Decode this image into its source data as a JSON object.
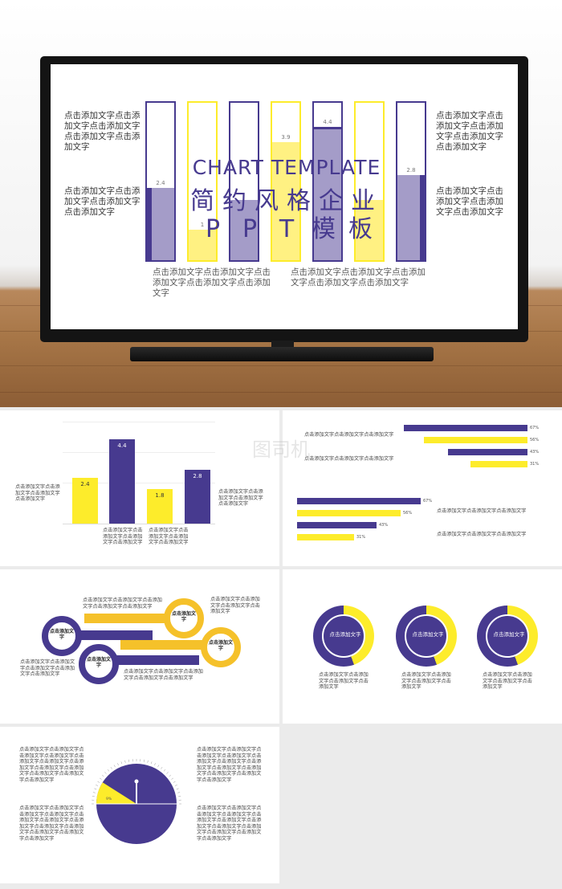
{
  "hero": {
    "title_en": "CHART TEMPLATE",
    "title_cn_1": "简约风格企业",
    "title_cn_2": [
      "P",
      "P",
      "T",
      "模",
      "板"
    ],
    "left_top": "点击添加文字点击添加文字点击添加文字点击添加文字点击添加文字",
    "left_bottom": "点击添加文字点击添加文字点击添加文字点击添加文字",
    "right_top": "点击添加文字点击添加文字点击添加文字点击添加文字点击添加文字",
    "right_bottom": "点击添加文字点击添加文字点击添加文字点击添加文字",
    "bottom_left": "点击添加文字点击添加文字点击添加文字点击添加文字点击添加文字",
    "bottom_right": "点击添加文字点击添加文字点击添加文字点击添加文字点击添加文字",
    "colors": {
      "purple": "#473a8f",
      "yellow": "#fdec2b",
      "monitor": "#141414",
      "wood": "#a77647"
    }
  },
  "chart_data": [
    {
      "type": "bar",
      "values": [
        2.4,
        1,
        2.0,
        3.9,
        4.4,
        2.0,
        2.8
      ],
      "value_labels": [
        "2.4",
        "1",
        "",
        "3.9",
        "4.4",
        "",
        "2.8"
      ],
      "colors": [
        "purple",
        "yellow",
        "purple",
        "yellow",
        "purple",
        "yellow",
        "purple"
      ],
      "ylim": [
        0,
        5.2
      ]
    },
    {
      "type": "bar",
      "values": [
        2.4,
        4.4,
        1.8,
        2.8
      ],
      "value_labels": [
        "2.4",
        "4.4",
        "1.8",
        "2.8"
      ],
      "colors": [
        "yellow",
        "purple",
        "yellow",
        "purple"
      ],
      "ylim": [
        0,
        4.8
      ]
    },
    {
      "type": "bar",
      "orientation": "horizontal",
      "values": [
        67,
        56,
        43,
        31
      ],
      "value_labels": [
        "67%",
        "56%",
        "43%",
        "31%"
      ],
      "colors": [
        "purple",
        "yellow",
        "purple",
        "yellow"
      ],
      "xlim": [
        0,
        100
      ]
    },
    {
      "type": "bar",
      "orientation": "horizontal",
      "values": [
        67,
        56,
        43,
        31
      ],
      "value_labels": [
        "67%",
        "56%",
        "43%",
        "31%"
      ],
      "colors": [
        "purple",
        "yellow",
        "purple",
        "yellow"
      ],
      "xlim": [
        0,
        100
      ]
    },
    {
      "type": "pie",
      "slices": [
        {
          "label": "9%",
          "value": 9,
          "color": "yellow"
        },
        {
          "label": "",
          "value": 91,
          "color": "purple"
        }
      ]
    }
  ],
  "slide1": {
    "left": "点击添加文字点击添加文字点击添加文字点击添加文字",
    "right": "点击添加文字点击添加文字点击添加文字点击添加文字",
    "bottom_a": "点击添加文字点击添加文字点击添加文字点击添加文字",
    "bottom_b": "点击添加文字点击添加文字点击添加文字点击添加文字"
  },
  "slide2": {
    "t1": "点击添加文字点击添加文字点击添加文字",
    "t2": "点击添加文字点击添加文字点击添加文字",
    "t3": "点击添加文字点击添加文字点击添加文字",
    "t4": "点击添加文字点击添加文字点击添加文字"
  },
  "slide3": {
    "c1": "点击添加文字",
    "c2": "点击添加文字",
    "c3": "点击添加文字",
    "c4": "点击添加文字",
    "t_top": "点击添加文字点击添加文字点击添加文字点击添加文字点击添加文字",
    "t_right": "点击添加文字点击添加文字点击添加文字点击添加文字",
    "t_left": "点击添加文字点击添加文字点击添加文字点击添加文字点击添加文字",
    "t_bottom": "点击添加文字点击添加文字点击添加文字点击添加文字点击添加文字"
  },
  "slide4": {
    "rings": [
      {
        "label": "点击添加文字",
        "text": "点击添加文字点击添加文字点击添加文字点击添加文字"
      },
      {
        "label": "点击添加文字",
        "text": "点击添加文字点击添加文字点击添加文字点击添加文字"
      },
      {
        "label": "点击添加文字",
        "text": "点击添加文字点击添加文字点击添加文字点击添加文字"
      }
    ]
  },
  "slide5": {
    "tl": "点击添加文字点击添加文字点击添加文字点击添加文字点击添加文字点击添加文字点击添加文字点击添加文字点击添加文字点击添加文字点击添加文字点击添加文字",
    "bl": "点击添加文字点击添加文字点击添加文字点击添加文字点击添加文字点击添加文字点击添加文字点击添加文字点击添加文字点击添加文字点击添加文字点击添加文字",
    "tr": "点击添加文字点击添加文字点击添加文字点击添加文字点击添加文字点击添加文字点击添加文字点击添加文字点击添加文字点击添加文字点击添加文字点击添加文字",
    "br": "点击添加文字点击添加文字点击添加文字点击添加文字点击添加文字点击添加文字点击添加文字点击添加文字点击添加文字点击添加文字点击添加文字点击添加文字"
  }
}
